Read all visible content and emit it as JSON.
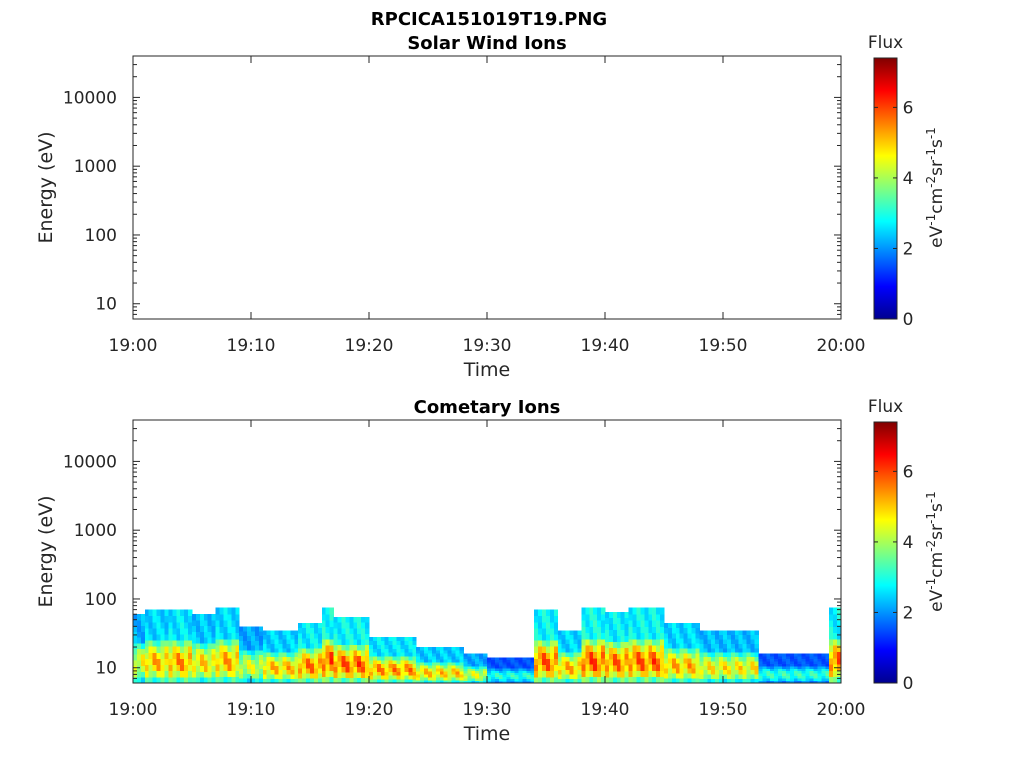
{
  "figure": {
    "title": "RPCICA151019T19.PNG"
  },
  "chart_data": [
    {
      "type": "heatmap",
      "title": "Solar Wind Ions",
      "xlabel": "Time",
      "ylabel": "Energy (eV)",
      "x_ticks": [
        "19:00",
        "19:10",
        "19:20",
        "19:30",
        "19:40",
        "19:50",
        "20:00"
      ],
      "y_ticks": [
        "10",
        "100",
        "1000",
        "10000"
      ],
      "y_scale": "log",
      "xlim": [
        "19:00",
        "20:00"
      ],
      "ylim": [
        6,
        40000
      ],
      "colorbar": {
        "title": "Flux",
        "label": "eV-1cm-2sr-1s-1",
        "ticks": [
          "0",
          "2",
          "4",
          "6"
        ],
        "range": [
          0,
          7.4
        ],
        "colormap": "jet"
      },
      "data_note": "no data",
      "bands": []
    },
    {
      "type": "heatmap",
      "title": "Cometary Ions",
      "xlabel": "Time",
      "ylabel": "Energy (eV)",
      "x_ticks": [
        "19:00",
        "19:10",
        "19:20",
        "19:30",
        "19:40",
        "19:50",
        "20:00"
      ],
      "y_ticks": [
        "10",
        "100",
        "1000",
        "10000"
      ],
      "y_scale": "log",
      "xlim": [
        "19:00",
        "20:00"
      ],
      "ylim": [
        6,
        40000
      ],
      "colorbar": {
        "title": "Flux",
        "label": "eV-1cm-2sr-1s-1",
        "ticks": [
          "0",
          "2",
          "4",
          "6"
        ],
        "range": [
          0,
          7.4
        ],
        "colormap": "jet"
      },
      "bands": [
        {
          "start": "19:00",
          "end": "19:01",
          "emin": 6,
          "emax": 60,
          "peak": 5.6
        },
        {
          "start": "19:01",
          "end": "19:03",
          "emin": 6,
          "emax": 70,
          "peak": 6.3
        },
        {
          "start": "19:03",
          "end": "19:05",
          "emin": 6,
          "emax": 70,
          "peak": 6.6
        },
        {
          "start": "19:05",
          "end": "19:07",
          "emin": 6,
          "emax": 60,
          "peak": 6.0
        },
        {
          "start": "19:07",
          "end": "19:09",
          "emin": 6,
          "emax": 75,
          "peak": 6.4
        },
        {
          "start": "19:09",
          "end": "19:11",
          "emin": 6,
          "emax": 40,
          "peak": 5.4
        },
        {
          "start": "19:11",
          "end": "19:14",
          "emin": 6,
          "emax": 35,
          "peak": 6.2
        },
        {
          "start": "19:14",
          "end": "19:16",
          "emin": 6,
          "emax": 45,
          "peak": 6.8
        },
        {
          "start": "19:16",
          "end": "19:17",
          "emin": 6,
          "emax": 75,
          "peak": 7.2
        },
        {
          "start": "19:17",
          "end": "19:20",
          "emin": 6,
          "emax": 55,
          "peak": 7.0
        },
        {
          "start": "19:20",
          "end": "19:24",
          "emin": 6,
          "emax": 28,
          "peak": 6.6
        },
        {
          "start": "19:24",
          "end": "19:28",
          "emin": 6,
          "emax": 20,
          "peak": 6.1
        },
        {
          "start": "19:28",
          "end": "19:30",
          "emin": 6,
          "emax": 16,
          "peak": 5.4
        },
        {
          "start": "19:30",
          "end": "19:34",
          "emin": 6,
          "emax": 14,
          "peak": 3.8
        },
        {
          "start": "19:34",
          "end": "19:36",
          "emin": 6,
          "emax": 70,
          "peak": 7.0
        },
        {
          "start": "19:36",
          "end": "19:38",
          "emin": 6,
          "emax": 35,
          "peak": 6.3
        },
        {
          "start": "19:38",
          "end": "19:40",
          "emin": 6,
          "emax": 75,
          "peak": 7.2
        },
        {
          "start": "19:40",
          "end": "19:42",
          "emin": 6,
          "emax": 65,
          "peak": 6.9
        },
        {
          "start": "19:42",
          "end": "19:45",
          "emin": 6,
          "emax": 75,
          "peak": 7.0
        },
        {
          "start": "19:45",
          "end": "19:48",
          "emin": 6,
          "emax": 45,
          "peak": 6.3
        },
        {
          "start": "19:48",
          "end": "19:53",
          "emin": 6,
          "emax": 35,
          "peak": 5.8
        },
        {
          "start": "19:53",
          "end": "19:59",
          "emin": 6,
          "emax": 16,
          "peak": 3.9
        },
        {
          "start": "19:59",
          "end": "20:00",
          "emin": 6,
          "emax": 75,
          "peak": 7.0
        }
      ]
    }
  ]
}
